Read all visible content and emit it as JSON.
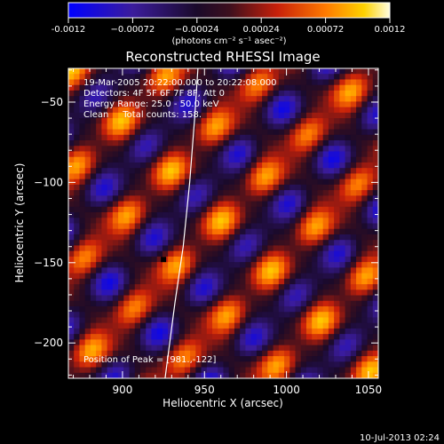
{
  "chart_data": {
    "type": "heatmap",
    "title": "Reconstructed RHESSI Image",
    "xlabel": "Heliocentric X (arcsec)",
    "ylabel": "Heliocentric Y (arcsec)",
    "xlim": [
      867,
      1056
    ],
    "ylim": [
      -222,
      -29
    ],
    "x_ticks": [
      900,
      950,
      1000,
      1050
    ],
    "y_ticks": [
      -50,
      -100,
      -150,
      -200
    ],
    "colorbar": {
      "range": [
        -0.0012,
        0.0012
      ],
      "tick_values": [
        -0.0012,
        -0.00072,
        -0.00024,
        0.00024,
        0.00072,
        0.0012
      ],
      "tick_labels": [
        "-0.0012",
        "−0.00072",
        "−0.00024",
        "0.00024",
        "0.00072",
        "0.0012"
      ],
      "unit_label": "(photons cm⁻² s⁻¹ asec⁻²)"
    },
    "annotations": {
      "time_range": "19-Mar-2005 20:22:00.000 to 20:22:08.000",
      "detectors": "Detectors: 4F 5F 6F 7F 8F, Att 0",
      "energy_range": "Energy Range: 25.0 - 50.0 keV",
      "method": "Clean     Total counts: 158.",
      "peak_position": "Position of Peak = [981.,-122]"
    },
    "peak": [
      981,
      -122
    ],
    "marker": [
      925,
      -148
    ],
    "limb_curve": [
      [
        946,
        -29
      ],
      [
        944,
        -60
      ],
      [
        941,
        -100
      ],
      [
        937,
        -140
      ],
      [
        932,
        -175
      ],
      [
        926,
        -222
      ]
    ],
    "pattern_note": "Diagonal fringe pattern of alternating maxima and minima"
  },
  "footer": {
    "date": "10-Jul-2013 02:24"
  }
}
